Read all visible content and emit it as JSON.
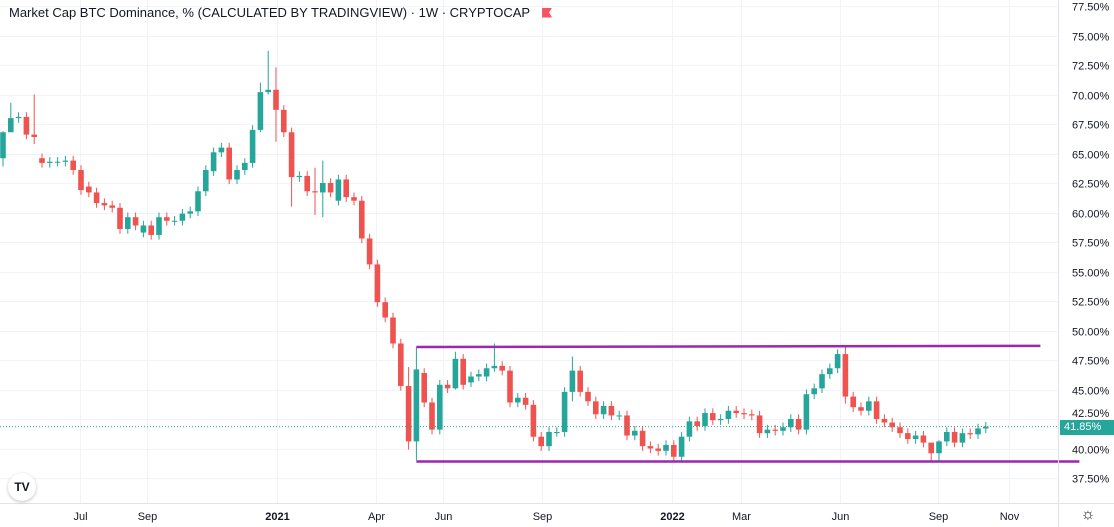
{
  "header": {
    "title": "Market Cap BTC Dominance, % (CALCULATED BY TRADINGVIEW) · 1W · CRYPTOCAP"
  },
  "colors": {
    "up": "#26a69a",
    "down": "#ef5350",
    "trendline": "#9c27b0",
    "grid": "#f0f3fa"
  },
  "icons": {
    "logo": "tradingview-logo-icon",
    "settings": "gear-icon",
    "flag": "flag-icon"
  },
  "logo_text": "TV",
  "chart_data": {
    "type": "candlestick",
    "title": "Market Cap BTC Dominance, % (CALCULATED BY TRADINGVIEW)",
    "interval": "1W",
    "ylabel": "%",
    "ylim": [
      37.0,
      78.0
    ],
    "yticks": [
      "77.50%",
      "75.00%",
      "72.50%",
      "70.00%",
      "67.50%",
      "65.00%",
      "62.50%",
      "60.00%",
      "57.50%",
      "55.00%",
      "52.50%",
      "50.00%",
      "47.50%",
      "45.00%",
      "42.50%",
      "40.00%",
      "37.50%"
    ],
    "ytick_values": [
      77.5,
      75,
      72.5,
      70,
      67.5,
      65,
      62.5,
      60,
      57.5,
      55,
      52.5,
      50,
      47.5,
      45,
      42.5,
      40,
      37.5
    ],
    "xticks": [
      {
        "label": "Jul",
        "index": 9.9
      },
      {
        "label": "Sep",
        "index": 18.5
      },
      {
        "label": "2021",
        "index": 35.1
      },
      {
        "label": "Apr",
        "index": 47.8
      },
      {
        "label": "Jun",
        "index": 56.4
      },
      {
        "label": "Sep",
        "index": 69.1
      },
      {
        "label": "2022",
        "index": 85.8
      },
      {
        "label": "Mar",
        "index": 94.6
      },
      {
        "label": "Jun",
        "index": 107.3
      },
      {
        "label": "Sep",
        "index": 119.9
      },
      {
        "label": "Nov",
        "index": 129.0
      }
    ],
    "x_index_range": [
      -0.4,
      135.2
    ],
    "last_price": "41.85%",
    "last_value": 41.85,
    "wick_default": 0.4,
    "candles_oc": [
      [
        64.6,
        66.8
      ],
      [
        66.8,
        68.0
      ],
      [
        68.0,
        68.1
      ],
      [
        68.1,
        66.6
      ],
      [
        66.6,
        66.4
      ],
      [
        64.6,
        64.2
      ],
      [
        64.2,
        64.3
      ],
      [
        64.3,
        64.3
      ],
      [
        64.3,
        64.4
      ],
      [
        64.4,
        63.6
      ],
      [
        63.6,
        61.9
      ],
      [
        62.2,
        61.7
      ],
      [
        61.7,
        60.8
      ],
      [
        60.8,
        60.6
      ],
      [
        60.6,
        60.4
      ],
      [
        60.4,
        58.6
      ],
      [
        58.6,
        59.6
      ],
      [
        59.6,
        58.9
      ],
      [
        58.3,
        58.9
      ],
      [
        58.9,
        58.1
      ],
      [
        58.1,
        59.6
      ],
      [
        59.6,
        59.3
      ],
      [
        59.3,
        59.3
      ],
      [
        59.3,
        59.9
      ],
      [
        59.9,
        60.1
      ],
      [
        60.1,
        61.8
      ],
      [
        61.8,
        63.6
      ],
      [
        63.5,
        65.1
      ],
      [
        65.1,
        65.5
      ],
      [
        65.5,
        62.8
      ],
      [
        62.8,
        63.6
      ],
      [
        63.6,
        64.2
      ],
      [
        64.2,
        67.0
      ],
      [
        67.0,
        70.2
      ],
      [
        70.2,
        70.4
      ],
      [
        70.4,
        68.7
      ],
      [
        68.7,
        66.8
      ],
      [
        66.8,
        63.0
      ],
      [
        63.0,
        63.1
      ],
      [
        63.1,
        61.8
      ],
      [
        61.8,
        61.7
      ],
      [
        61.7,
        62.5
      ],
      [
        62.5,
        61.7
      ],
      [
        61.0,
        62.8
      ],
      [
        62.8,
        61.3
      ],
      [
        61.3,
        61.0
      ],
      [
        61.0,
        57.8
      ],
      [
        57.8,
        55.6
      ],
      [
        55.6,
        52.4
      ],
      [
        52.4,
        51.1
      ],
      [
        51.1,
        48.9
      ],
      [
        48.9,
        45.3
      ],
      [
        45.3,
        40.6
      ],
      [
        40.6,
        46.7
      ],
      [
        46.4,
        43.9
      ],
      [
        43.9,
        41.6
      ],
      [
        41.6,
        45.4
      ],
      [
        45.4,
        45.1
      ],
      [
        45.1,
        47.6
      ],
      [
        47.6,
        45.4
      ],
      [
        45.6,
        46.1
      ],
      [
        46.1,
        46.3
      ],
      [
        46.1,
        46.8
      ],
      [
        46.8,
        47.0
      ],
      [
        47.0,
        46.6
      ],
      [
        46.6,
        43.9
      ],
      [
        43.9,
        44.3
      ],
      [
        44.3,
        43.7
      ],
      [
        43.7,
        41.0
      ],
      [
        41.0,
        40.2
      ],
      [
        40.2,
        41.4
      ],
      [
        41.4,
        41.4
      ],
      [
        41.4,
        44.8
      ],
      [
        44.8,
        46.6
      ],
      [
        46.6,
        44.8
      ],
      [
        44.8,
        44.0
      ],
      [
        44.0,
        42.9
      ],
      [
        42.9,
        43.6
      ],
      [
        43.6,
        42.8
      ],
      [
        42.8,
        42.8
      ],
      [
        42.8,
        41.1
      ],
      [
        41.1,
        41.5
      ],
      [
        41.5,
        40.2
      ],
      [
        40.2,
        40.0
      ],
      [
        40.0,
        39.8
      ],
      [
        39.8,
        40.3
      ],
      [
        40.3,
        39.3
      ],
      [
        39.3,
        41.0
      ],
      [
        41.0,
        42.3
      ],
      [
        42.3,
        41.9
      ],
      [
        41.9,
        43.0
      ],
      [
        43.0,
        42.4
      ],
      [
        42.4,
        42.5
      ],
      [
        42.5,
        43.2
      ],
      [
        43.2,
        43.0
      ],
      [
        43.0,
        42.9
      ],
      [
        42.9,
        42.8
      ],
      [
        42.8,
        41.3
      ],
      [
        41.3,
        41.6
      ],
      [
        41.6,
        41.5
      ],
      [
        41.5,
        41.8
      ],
      [
        41.8,
        42.5
      ],
      [
        42.5,
        41.6
      ],
      [
        41.6,
        44.6
      ],
      [
        44.6,
        45.1
      ],
      [
        45.1,
        46.3
      ],
      [
        46.3,
        46.8
      ],
      [
        46.8,
        48.0
      ],
      [
        48.0,
        44.4
      ],
      [
        44.4,
        43.5
      ],
      [
        43.5,
        43.2
      ],
      [
        43.2,
        44.0
      ],
      [
        44.0,
        42.5
      ],
      [
        42.5,
        42.2
      ],
      [
        42.2,
        41.8
      ],
      [
        41.8,
        41.3
      ],
      [
        41.3,
        40.8
      ],
      [
        40.8,
        41.1
      ],
      [
        41.1,
        40.5
      ],
      [
        40.5,
        39.6
      ],
      [
        39.6,
        40.6
      ],
      [
        40.6,
        41.4
      ],
      [
        41.4,
        40.5
      ],
      [
        40.5,
        41.3
      ],
      [
        41.3,
        41.2
      ],
      [
        41.2,
        41.7
      ],
      [
        41.7,
        41.85
      ]
    ],
    "wick_overrides": {
      "0": [
        66.9,
        63.9
      ],
      "1": [
        69.3,
        67.7
      ],
      "4": [
        70.0,
        65.8
      ],
      "33": [
        71.0,
        66.8
      ],
      "34": [
        73.7,
        70.0
      ],
      "35": [
        72.3,
        66.0
      ],
      "37": [
        67.2,
        60.5
      ],
      "40": [
        63.8,
        59.8
      ],
      "41": [
        64.4,
        59.6
      ],
      "52": [
        46.9,
        39.9
      ],
      "53": [
        48.6,
        39.0
      ],
      "58": [
        48.2,
        45.0
      ],
      "63": [
        48.9,
        46.5
      ],
      "73": [
        47.8,
        44.0
      ],
      "108": [
        48.6,
        43.8
      ],
      "119": [
        39.9,
        38.9
      ],
      "120": [
        40.7,
        38.9
      ]
    },
    "trendlines": [
      {
        "name": "resistance",
        "from": {
          "index": 53,
          "value": 48.6
        },
        "to": {
          "index": 133,
          "value": 48.7
        }
      },
      {
        "name": "support",
        "from": {
          "index": 53,
          "value": 38.9
        },
        "to": {
          "index": 138,
          "value": 38.9
        }
      }
    ]
  }
}
